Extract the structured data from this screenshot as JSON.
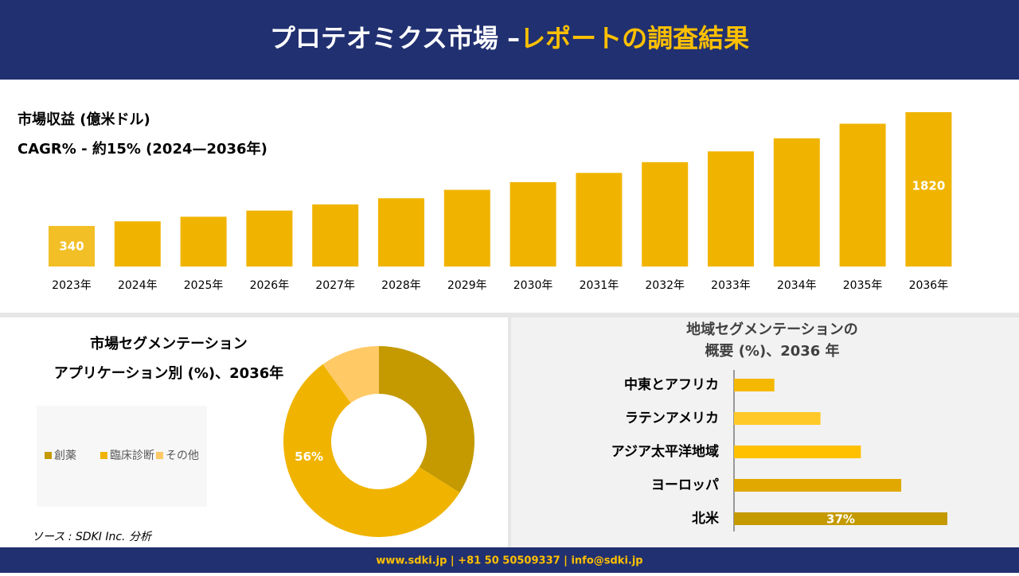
{
  "header": {
    "title_main": "プロテオミクス市場 –",
    "title_accent": "レポートの調査結果"
  },
  "chart_data": [
    {
      "type": "bar",
      "title": "市場収益 (億米ドル)",
      "subtitle": "CAGR% - 約15% (2024—2036年)",
      "categories": [
        "2023年",
        "2024年",
        "2025年",
        "2026年",
        "2027年",
        "2028年",
        "2029年",
        "2030年",
        "2031年",
        "2032年",
        "2033年",
        "2034年",
        "2035年",
        "2036年"
      ],
      "values": [
        340,
        400,
        460,
        540,
        620,
        700,
        810,
        910,
        1030,
        1170,
        1310,
        1480,
        1670,
        1820
      ],
      "color": "#f0b400"
    },
    {
      "type": "donut",
      "title": "市場セグメンテーション",
      "subtitle": "アプリケーション別 (%)、2036年",
      "categories": [
        "創薬",
        "臨床診断",
        "その他"
      ],
      "values": [
        34,
        56,
        10
      ],
      "value_labels": [
        null,
        "56%",
        null
      ],
      "colors": [
        "#c49a00",
        "#f0b400",
        "#ffc966"
      ]
    },
    {
      "type": "hbar",
      "title": "地域セグメンテーションの",
      "subtitle": "概要 (%)、2036 年",
      "categories": [
        "中東とアフリカ",
        "ラテンアメリカ",
        "アジア太平洋地域",
        "ヨーロッパ",
        "北米"
      ],
      "values": [
        7,
        15,
        22,
        29,
        37
      ],
      "value_labels": [
        null,
        null,
        null,
        null,
        "37%"
      ],
      "colors": [
        "#f5b800",
        "#ffca28",
        "#ffc000",
        "#e0a800",
        "#c49a00"
      ]
    }
  ],
  "source": "ソース : SDKI Inc. 分析",
  "footer": "www.sdki.jp | +81 50 50509337 | info@sdki.jp"
}
